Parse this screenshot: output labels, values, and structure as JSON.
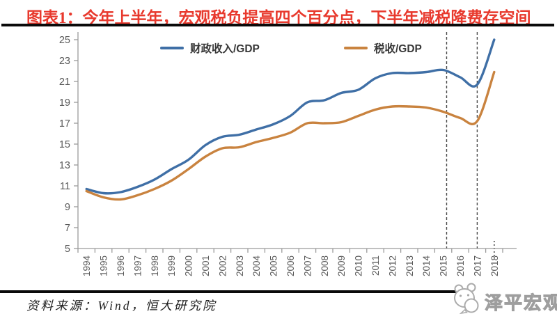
{
  "header": {
    "title": "图表1：今年上半年，宏观税负提高四个百分点，下半年减税降费存空间",
    "title_color": "#e8392d"
  },
  "footer": {
    "source": "资料来源：Wind，恒大研究院",
    "watermark": "泽平宏观",
    "watermark_logo": "wechat-panda-logo"
  },
  "chart_data": {
    "type": "line",
    "x": [
      1994,
      1995,
      1996,
      1997,
      1998,
      1999,
      2000,
      2001,
      2002,
      2003,
      2004,
      2005,
      2006,
      2007,
      2008,
      2009,
      2010,
      2011,
      2012,
      2013,
      2014,
      2015,
      2016,
      2017,
      2018
    ],
    "series": [
      {
        "name": "财政收入/GDP",
        "color": "#3f6fa6",
        "values": [
          10.7,
          10.3,
          10.4,
          10.9,
          11.6,
          12.6,
          13.5,
          14.9,
          15.7,
          15.9,
          16.4,
          16.9,
          17.7,
          19.0,
          19.2,
          19.9,
          20.2,
          21.3,
          21.8,
          21.8,
          21.9,
          22.1,
          21.4,
          20.7,
          25.0
        ]
      },
      {
        "name": "税收/GDP",
        "color": "#c9833f",
        "values": [
          10.5,
          9.9,
          9.7,
          10.1,
          10.7,
          11.5,
          12.6,
          13.8,
          14.6,
          14.7,
          15.2,
          15.6,
          16.1,
          17.0,
          17.0,
          17.1,
          17.7,
          18.3,
          18.6,
          18.6,
          18.5,
          18.1,
          17.5,
          17.2,
          21.9
        ]
      }
    ],
    "ylim": [
      5,
      25
    ],
    "yticks": [
      5,
      7,
      9,
      11,
      13,
      15,
      17,
      19,
      21,
      23,
      25
    ],
    "grid": false,
    "legend_position": "top-center",
    "axis_color": "#9b9b9b",
    "tick_label_color": "#595959",
    "annotations": {
      "dashed_vlines_x": [
        2015.2,
        2017
      ],
      "dotted_marker_x": 2018
    }
  }
}
